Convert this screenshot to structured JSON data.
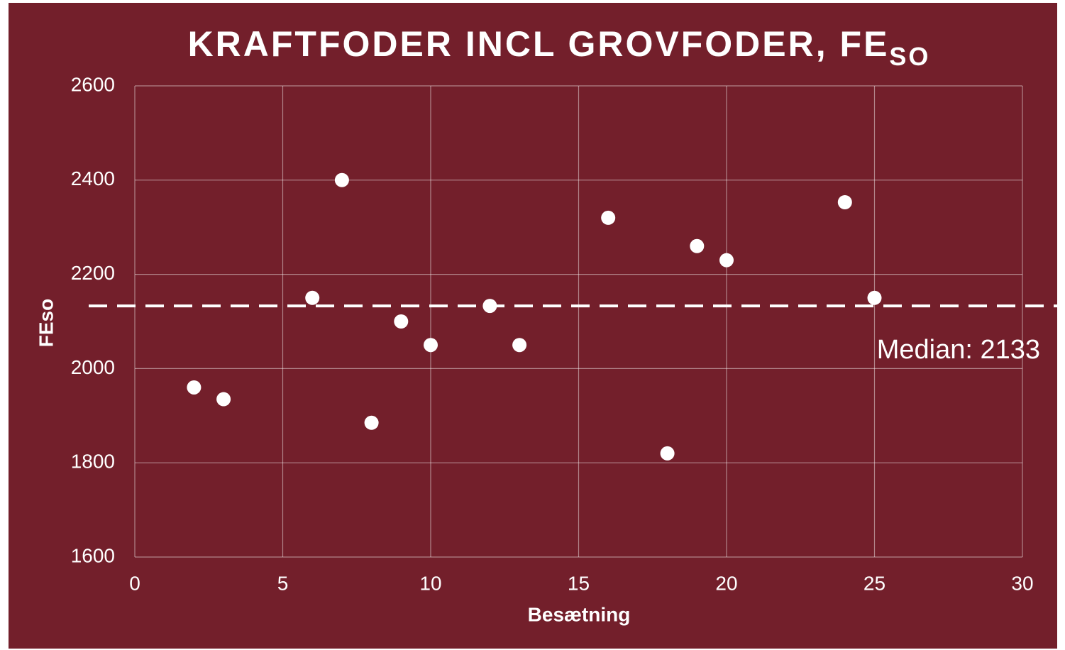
{
  "chart_data": {
    "type": "scatter",
    "title": "KRAFTFODER INCL GROVFODER, FE",
    "title_subscript": "SO",
    "x_label": "Besætning",
    "y_label": "FEso",
    "x": [
      2,
      3,
      6,
      7,
      8,
      9,
      10,
      12,
      13,
      16,
      18,
      19,
      20,
      24,
      25
    ],
    "series": [
      {
        "color": "#ffffff",
        "values": [
          1960,
          1935,
          2150,
          2400,
          1885,
          2100,
          2050,
          2133,
          2050,
          2320,
          1820,
          2260,
          2230,
          2353,
          2150
        ]
      }
    ],
    "median": 2133,
    "annotations": [
      {
        "text": "Median: 2133"
      }
    ],
    "xlim": [
      0,
      30
    ],
    "xticks": [
      0,
      5,
      10,
      15,
      20,
      25,
      30
    ],
    "ylim": [
      1600,
      2600
    ],
    "yticks": [
      1600,
      1800,
      2000,
      2200,
      2400,
      2600
    ],
    "grid": true
  }
}
